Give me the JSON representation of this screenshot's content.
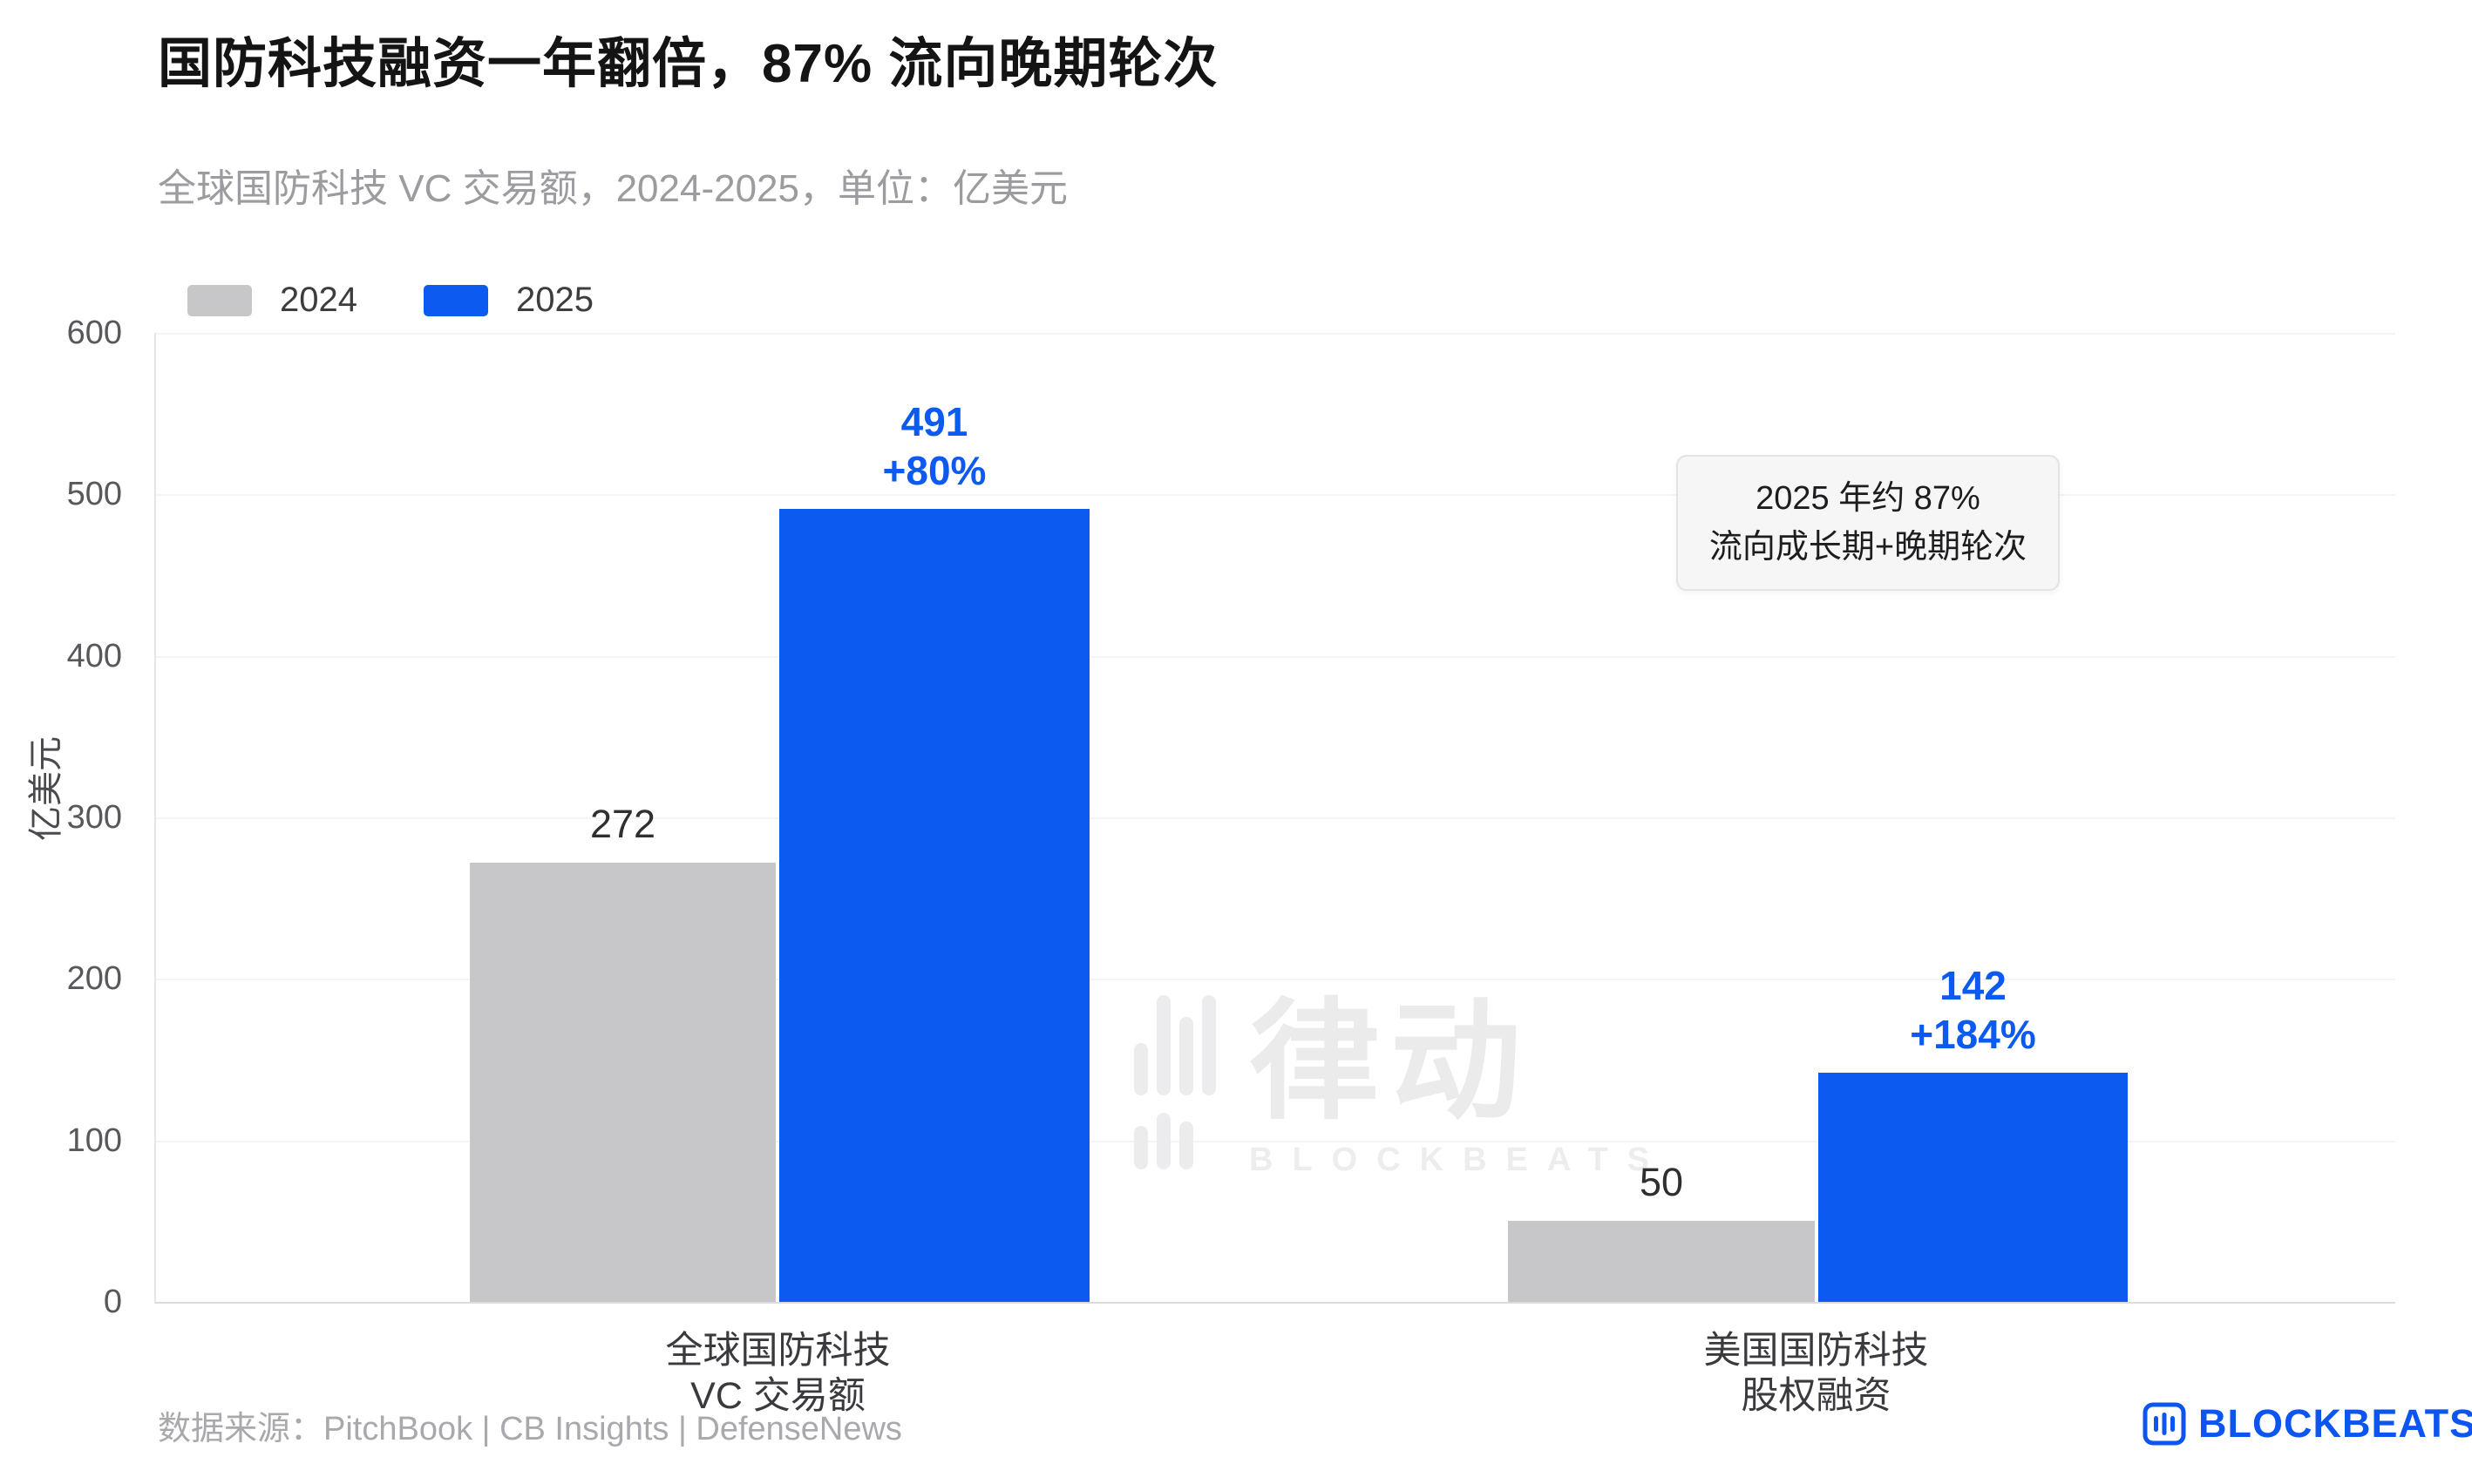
{
  "title": "国防科技融资一年翻倍，87% 流向晚期轮次",
  "subtitle": "全球国防科技 VC 交易额，2024-2025，单位：亿美元",
  "y_axis": {
    "label": "亿美元",
    "ticks": [
      "600",
      "500",
      "400",
      "300",
      "200",
      "100",
      "0"
    ]
  },
  "chart_data": {
    "type": "bar",
    "title": "国防科技融资一年翻倍，87% 流向晚期轮次",
    "subtitle": "全球国防科技 VC 交易额，2024-2025，单位：亿美元",
    "unit": "亿美元",
    "categories": [
      [
        "全球国防科技",
        "VC 交易额"
      ],
      [
        "美国国防科技",
        "股权融资"
      ]
    ],
    "series": [
      {
        "name": "2024",
        "color": "#c7c7c9",
        "label_color": "#2f2f31",
        "values": [
          272,
          50
        ]
      },
      {
        "name": "2025",
        "color": "#0c5af0",
        "label_color": "#0c5af0",
        "values": [
          491,
          142
        ],
        "pct": [
          "+80%",
          "+184%"
        ]
      }
    ],
    "ylim": [
      0,
      600
    ],
    "grid": "horizontal",
    "legend_position": "top-left"
  },
  "annotation": {
    "line1": "2025 年约 87%",
    "line2": "流向成长期+晚期轮次"
  },
  "watermark": {
    "cn": "律动",
    "en": "BLOCKBEATS"
  },
  "footer": {
    "source": "数据来源：PitchBook | CB Insights | DefenseNews"
  },
  "brand": {
    "name": "BLOCKBEATS",
    "color": "#0c55ee"
  }
}
